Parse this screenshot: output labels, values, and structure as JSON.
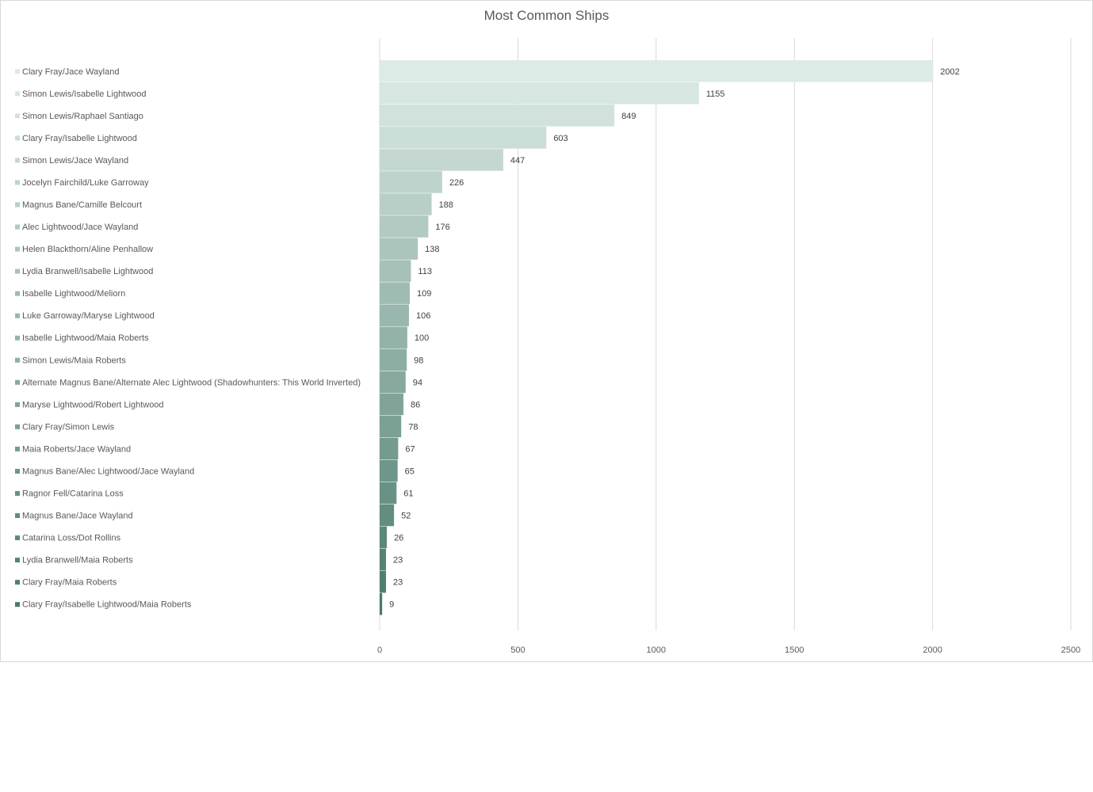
{
  "chart_data": {
    "type": "bar",
    "orientation": "horizontal",
    "title": "Most Common Ships",
    "xlabel": "",
    "ylabel": "",
    "xlim": [
      0,
      2500
    ],
    "x_ticks": [
      "0",
      "500",
      "1000",
      "1500",
      "2000",
      "2500"
    ],
    "grid": true,
    "legend": "left",
    "data_labels": true,
    "colors": {
      "lightest": "#dcebe5",
      "darkest": "#4a7a6c"
    },
    "categories": [
      "Clary Fray/Jace Wayland",
      "Simon Lewis/Isabelle Lightwood",
      "Simon Lewis/Raphael Santiago",
      "Clary Fray/Isabelle Lightwood",
      "Simon Lewis/Jace Wayland",
      "Jocelyn Fairchild/Luke Garroway",
      "Magnus Bane/Camille Belcourt",
      "Alec Lightwood/Jace Wayland",
      "Helen Blackthorn/Aline Penhallow",
      "Lydia Branwell/Isabelle Lightwood",
      "Isabelle Lightwood/Meliorn",
      "Luke Garroway/Maryse Lightwood",
      "Isabelle Lightwood/Maia Roberts",
      "Simon Lewis/Maia Roberts",
      "Alternate Magnus Bane/Alternate Alec Lightwood (Shadowhunters: This World Inverted)",
      "Maryse Lightwood/Robert Lightwood",
      "Clary Fray/Simon Lewis",
      "Maia Roberts/Jace Wayland",
      "Magnus Bane/Alec Lightwood/Jace Wayland",
      "Ragnor Fell/Catarina Loss",
      "Magnus Bane/Jace Wayland",
      "Catarina Loss/Dot Rollins",
      "Lydia Branwell/Maia Roberts",
      "Clary Fray/Maia Roberts",
      "Clary Fray/Isabelle Lightwood/Maia Roberts"
    ],
    "values": [
      2002,
      1155,
      849,
      603,
      447,
      226,
      188,
      176,
      138,
      113,
      109,
      106,
      100,
      98,
      94,
      86,
      78,
      67,
      65,
      61,
      52,
      26,
      23,
      23,
      9
    ]
  }
}
